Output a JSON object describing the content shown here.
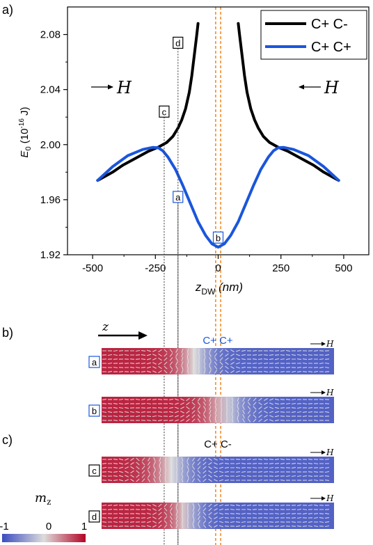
{
  "panel_labels": {
    "a": "a)",
    "b": "b)",
    "c": "c)"
  },
  "chart_data": {
    "type": "line",
    "ylabel": {
      "main": "E",
      "sub": "0",
      "unit_pre": " (10",
      "exp": "-16",
      "unit_post": " J)"
    },
    "xlabel": {
      "main": "z",
      "sub": "DW",
      "unit": " (nm)"
    },
    "xlim": [
      -600,
      600
    ],
    "ylim": [
      1.92,
      2.1
    ],
    "xticks": [
      -500,
      -250,
      0,
      250,
      500
    ],
    "xtick_labels": [
      "-500",
      "-250",
      "0",
      "250",
      "500"
    ],
    "yticks": [
      1.92,
      1.96,
      2.0,
      2.04,
      2.08
    ],
    "ytick_labels": [
      "1.92",
      "1.96",
      "2.00",
      "2.04",
      "2.08"
    ],
    "legend": {
      "placement": "top-right"
    },
    "field_labels": {
      "left": "H",
      "right": "H"
    },
    "series": [
      {
        "name": "C+ C-",
        "color": "#000000",
        "segments": [
          [
            [
              -480,
              1.974
            ],
            [
              -420,
              1.98
            ],
            [
              -380,
              1.985
            ],
            [
              -330,
              1.99
            ],
            [
              -280,
              1.995
            ],
            [
              -240,
              1.998
            ],
            [
              -205,
              2.0015
            ],
            [
              -180,
              2.006
            ],
            [
              -160,
              2.012
            ],
            [
              -145,
              2.018
            ],
            [
              -130,
              2.026
            ],
            [
              -115,
              2.038
            ],
            [
              -105,
              2.05
            ],
            [
              -95,
              2.065
            ],
            [
              -85,
              2.08
            ],
            [
              -80,
              2.088
            ]
          ],
          [
            [
              80,
              2.088
            ],
            [
              85,
              2.08
            ],
            [
              95,
              2.065
            ],
            [
              105,
              2.05
            ],
            [
              115,
              2.038
            ],
            [
              130,
              2.026
            ],
            [
              145,
              2.018
            ],
            [
              160,
              2.012
            ],
            [
              180,
              2.006
            ],
            [
              205,
              2.0015
            ],
            [
              240,
              1.998
            ],
            [
              280,
              1.995
            ],
            [
              330,
              1.99
            ],
            [
              380,
              1.985
            ],
            [
              420,
              1.98
            ],
            [
              480,
              1.974
            ]
          ]
        ]
      },
      {
        "name": "C+ C+",
        "color": "#1a56db",
        "segments": [
          [
            [
              -480,
              1.974
            ],
            [
              -420,
              1.984
            ],
            [
              -360,
              1.992
            ],
            [
              -300,
              1.9965
            ],
            [
              -260,
              1.998
            ],
            [
              -240,
              1.9978
            ],
            [
              -220,
              1.9955
            ],
            [
              -200,
              1.991
            ],
            [
              -170,
              1.982
            ],
            [
              -140,
              1.97
            ],
            [
              -110,
              1.957
            ],
            [
              -80,
              1.944
            ],
            [
              -50,
              1.934
            ],
            [
              -25,
              1.928
            ],
            [
              0,
              1.9255
            ],
            [
              25,
              1.928
            ],
            [
              50,
              1.934
            ],
            [
              80,
              1.944
            ],
            [
              110,
              1.957
            ],
            [
              140,
              1.97
            ],
            [
              170,
              1.982
            ],
            [
              200,
              1.991
            ],
            [
              220,
              1.9955
            ],
            [
              240,
              1.9978
            ],
            [
              260,
              1.998
            ],
            [
              300,
              1.9965
            ],
            [
              360,
              1.992
            ],
            [
              420,
              1.984
            ],
            [
              480,
              1.974
            ]
          ]
        ]
      }
    ],
    "markers": [
      {
        "label": "c",
        "x": -215,
        "y": 2.024,
        "border": "#000000",
        "dotted": "#444444"
      },
      {
        "label": "d",
        "x": -160,
        "y": 2.074,
        "border": "#000000",
        "dotted": "#444444"
      },
      {
        "label": "a",
        "x": -160,
        "y": 1.962,
        "border": "#1a56db",
        "dotted": "#444444"
      },
      {
        "label": "b",
        "x": 0,
        "y": 1.9325,
        "border": "#1a56db",
        "dotted": "#444444"
      }
    ],
    "orange_lines_x": [
      -10,
      10
    ],
    "orange_color": "#f28c28"
  },
  "panels": {
    "z_axis_label": "z",
    "cpcp_title": "C+ C+",
    "cpcm_title": "C+ C-",
    "strips": [
      {
        "label": "a",
        "field": "H",
        "border": "#1a56db",
        "wall_center": 0.4,
        "wall_width": 0.2
      },
      {
        "label": "b",
        "field": "H",
        "border": "#1a56db",
        "wall_center": 0.53,
        "wall_width": 0.22
      },
      {
        "label": "c",
        "field": "H",
        "border": "#000000",
        "wall_center": 0.3,
        "wall_width": 0.22
      },
      {
        "label": "d",
        "field": "H",
        "border": "#000000",
        "wall_center": 0.36,
        "wall_width": 0.16
      }
    ]
  },
  "colorbar": {
    "title_main": "m",
    "title_sub": "z",
    "tick_labels": [
      "-1",
      "0",
      "1"
    ],
    "colors": [
      "#3b4cc0",
      "#dddcdc",
      "#b40426"
    ]
  }
}
